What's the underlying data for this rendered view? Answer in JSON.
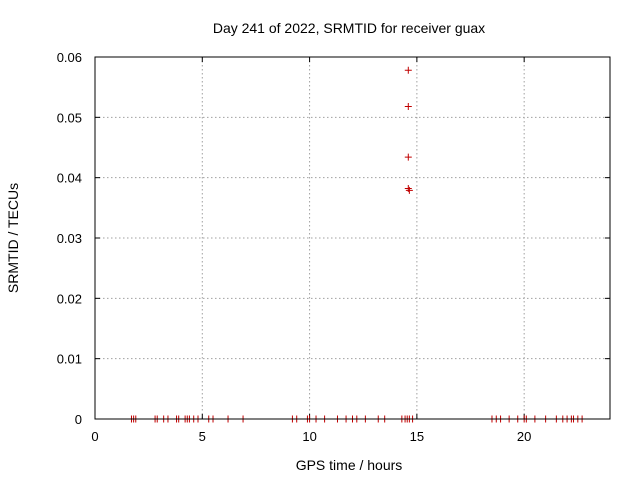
{
  "chart_data": {
    "type": "scatter",
    "title": "Day 241 of 2022, SRMTID for receiver guax",
    "xlabel": "GPS time / hours",
    "ylabel": "SRMTID / TECUs",
    "xlim": [
      0,
      24
    ],
    "ylim": [
      0,
      0.06
    ],
    "x_ticks": [
      0,
      5,
      10,
      15,
      20
    ],
    "x_tick_labels": [
      "0",
      "5",
      "10",
      "15",
      "20"
    ],
    "y_ticks": [
      0,
      0.01,
      0.02,
      0.03,
      0.04,
      0.05,
      0.06
    ],
    "y_tick_labels": [
      "0",
      "0.01",
      "0.02",
      "0.03",
      "0.04",
      "0.05",
      "0.06"
    ],
    "grid": true,
    "marker": "plus",
    "color": "#c00000",
    "points": [
      {
        "x": 1.7,
        "y": 0
      },
      {
        "x": 1.8,
        "y": 0
      },
      {
        "x": 1.9,
        "y": 0
      },
      {
        "x": 2.8,
        "y": 0
      },
      {
        "x": 2.9,
        "y": 0
      },
      {
        "x": 3.2,
        "y": 0
      },
      {
        "x": 3.4,
        "y": 0
      },
      {
        "x": 3.8,
        "y": 0
      },
      {
        "x": 3.9,
        "y": 0
      },
      {
        "x": 4.2,
        "y": 0
      },
      {
        "x": 4.3,
        "y": 0
      },
      {
        "x": 4.4,
        "y": 0
      },
      {
        "x": 4.6,
        "y": 0
      },
      {
        "x": 4.8,
        "y": 0
      },
      {
        "x": 5.3,
        "y": 0
      },
      {
        "x": 5.5,
        "y": 0
      },
      {
        "x": 6.2,
        "y": 0
      },
      {
        "x": 6.9,
        "y": 0
      },
      {
        "x": 9.2,
        "y": 0
      },
      {
        "x": 9.4,
        "y": 0
      },
      {
        "x": 9.9,
        "y": 0
      },
      {
        "x": 10.0,
        "y": 0
      },
      {
        "x": 10.3,
        "y": 0
      },
      {
        "x": 10.7,
        "y": 0
      },
      {
        "x": 11.3,
        "y": 0
      },
      {
        "x": 11.7,
        "y": 0
      },
      {
        "x": 12.0,
        "y": 0
      },
      {
        "x": 12.2,
        "y": 0
      },
      {
        "x": 12.6,
        "y": 0
      },
      {
        "x": 13.2,
        "y": 0
      },
      {
        "x": 13.5,
        "y": 0
      },
      {
        "x": 14.3,
        "y": 0
      },
      {
        "x": 14.45,
        "y": 0
      },
      {
        "x": 14.55,
        "y": 0
      },
      {
        "x": 14.65,
        "y": 0
      },
      {
        "x": 14.8,
        "y": 0
      },
      {
        "x": 18.5,
        "y": 0
      },
      {
        "x": 18.7,
        "y": 0
      },
      {
        "x": 18.9,
        "y": 0
      },
      {
        "x": 19.3,
        "y": 0
      },
      {
        "x": 19.7,
        "y": 0
      },
      {
        "x": 20.0,
        "y": 0
      },
      {
        "x": 20.1,
        "y": 0
      },
      {
        "x": 20.5,
        "y": 0
      },
      {
        "x": 21.0,
        "y": 0
      },
      {
        "x": 21.5,
        "y": 0
      },
      {
        "x": 21.8,
        "y": 0
      },
      {
        "x": 22.0,
        "y": 0
      },
      {
        "x": 22.2,
        "y": 0
      },
      {
        "x": 22.3,
        "y": 0
      },
      {
        "x": 22.5,
        "y": 0
      },
      {
        "x": 22.7,
        "y": 0
      },
      {
        "x": 14.6,
        "y": 0.0578
      },
      {
        "x": 14.6,
        "y": 0.0518
      },
      {
        "x": 14.6,
        "y": 0.0434
      },
      {
        "x": 14.6,
        "y": 0.0382
      },
      {
        "x": 14.65,
        "y": 0.0379
      }
    ]
  }
}
